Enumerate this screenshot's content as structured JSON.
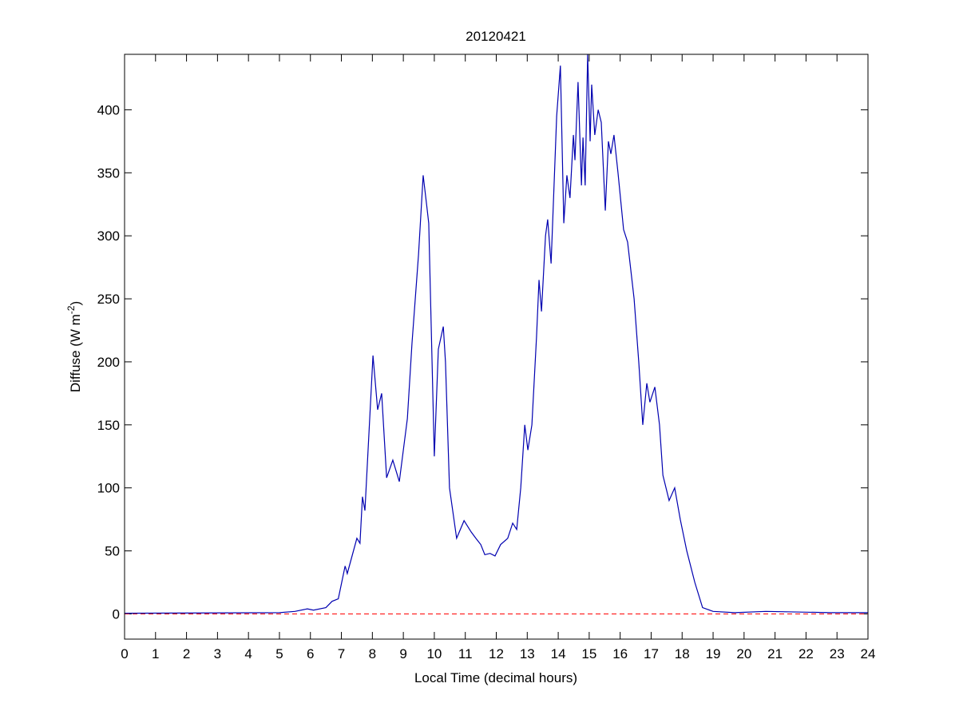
{
  "chart_data": {
    "type": "line",
    "title": "20120421",
    "xlabel": "Local Time (decimal hours)",
    "ylabel_parts": [
      "Diffuse (W m",
      "-2",
      ")"
    ],
    "x": [
      0,
      5.0,
      5.5,
      5.9,
      6.1,
      6.5,
      6.7,
      6.9,
      7.12,
      7.19,
      7.5,
      7.6,
      7.68,
      7.76,
      8.02,
      8.17,
      8.3,
      8.46,
      8.66,
      8.87,
      9.13,
      9.28,
      9.49,
      9.64,
      9.75,
      9.82,
      10.0,
      10.13,
      10.29,
      10.36,
      10.49,
      10.72,
      10.96,
      11.19,
      11.34,
      11.5,
      11.63,
      11.8,
      11.96,
      12.14,
      12.37,
      12.53,
      12.66,
      12.79,
      12.92,
      13.02,
      13.15,
      13.3,
      13.38,
      13.46,
      13.59,
      13.66,
      13.77,
      13.95,
      14.07,
      14.18,
      14.28,
      14.38,
      14.49,
      14.54,
      14.64,
      14.75,
      14.8,
      14.87,
      14.95,
      15.03,
      15.08,
      15.18,
      15.29,
      15.39,
      15.52,
      15.62,
      15.7,
      15.8,
      15.93,
      16.11,
      16.24,
      16.45,
      16.6,
      16.73,
      16.86,
      16.96,
      17.12,
      17.27,
      17.38,
      17.58,
      17.76,
      17.94,
      18.15,
      18.41,
      18.66,
      19.0,
      19.7,
      20.7,
      22.8,
      24
    ],
    "values": [
      0.5,
      1,
      2,
      4,
      3,
      5,
      10,
      12,
      38,
      32,
      60,
      56,
      93,
      82,
      205,
      162,
      175,
      108,
      122,
      105,
      155,
      215,
      285,
      348,
      325,
      310,
      125,
      210,
      228,
      200,
      100,
      60,
      74,
      65,
      60,
      55,
      47,
      48,
      46,
      55,
      60,
      72,
      67,
      100,
      150,
      130,
      150,
      220,
      265,
      240,
      300,
      313,
      278,
      395,
      435,
      310,
      348,
      330,
      380,
      360,
      422,
      340,
      378,
      340,
      444,
      375,
      420,
      380,
      400,
      390,
      320,
      375,
      365,
      380,
      350,
      305,
      295,
      250,
      200,
      150,
      183,
      168,
      180,
      150,
      110,
      90,
      100,
      75,
      50,
      25,
      5,
      2,
      1,
      2,
      1,
      1
    ],
    "color": "#0000b0",
    "reference_line": {
      "value": 0,
      "color": "#ff0000"
    },
    "xlim": [
      0,
      24
    ],
    "xticks": [
      0,
      1,
      2,
      3,
      4,
      5,
      6,
      7,
      8,
      9,
      10,
      11,
      12,
      13,
      14,
      15,
      16,
      17,
      18,
      19,
      20,
      21,
      22,
      23,
      24
    ],
    "ylim": [
      -20,
      444
    ],
    "yticks": [
      0,
      50,
      100,
      150,
      200,
      250,
      300,
      350,
      400
    ]
  }
}
